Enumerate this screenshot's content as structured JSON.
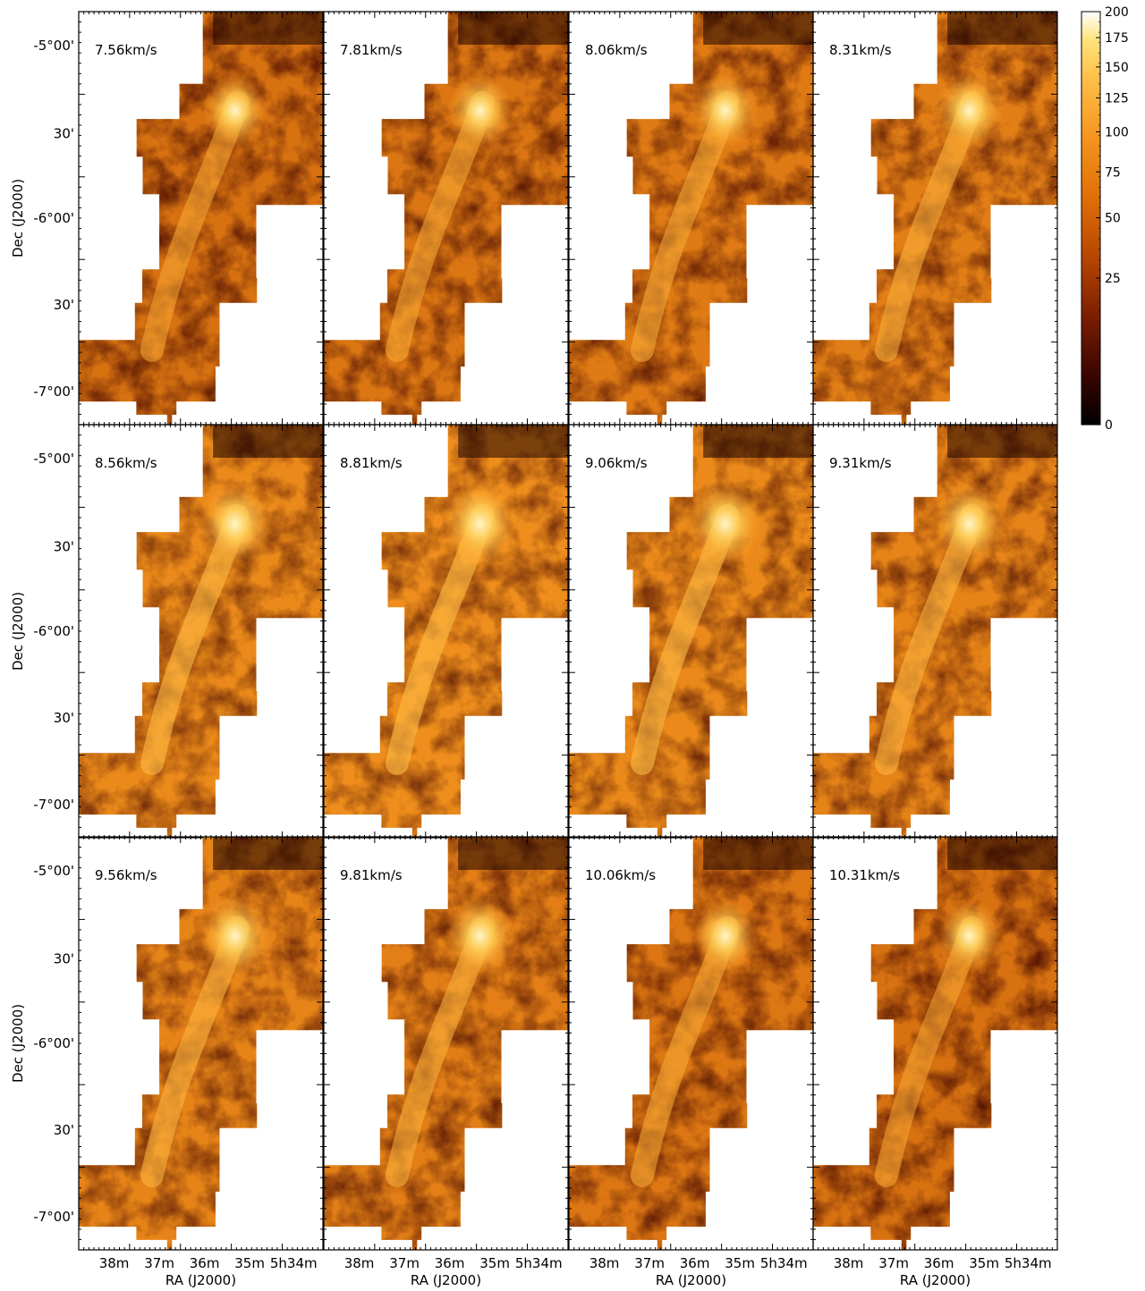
{
  "figure": {
    "velocity_labels": [
      [
        "7.56km/s",
        "7.81km/s",
        "8.06km/s",
        "8.31km/s"
      ],
      [
        "8.56km/s",
        "8.81km/s",
        "9.06km/s",
        "9.31km/s"
      ],
      [
        "9.56km/s",
        "9.81km/s",
        "10.06km/s",
        "10.31km/s"
      ]
    ],
    "y_axis_title": "Dec (J2000)",
    "x_axis_title": "RA (J2000)",
    "y_tick_labels": [
      "-5°00'",
      "30'",
      "-6°00'",
      "30'",
      "-7°00'"
    ],
    "x_tick_labels": [
      "38m",
      "37m",
      "36m",
      "35m",
      "5h34m"
    ],
    "colorbar": {
      "labels": [
        "200",
        "175",
        "150",
        "125",
        "100",
        "75",
        "50",
        "25",
        "0"
      ],
      "colors": [
        "#000000",
        "#3a0500",
        "#7a1e00",
        "#b54500",
        "#e06f08",
        "#f5961f",
        "#ffc04a",
        "#ffe27a",
        "#ffffff"
      ]
    },
    "intensity_by_panel": [
      0.55,
      0.6,
      0.65,
      0.7,
      0.85,
      0.9,
      0.85,
      0.78,
      0.78,
      0.72,
      0.62,
      0.55
    ]
  }
}
